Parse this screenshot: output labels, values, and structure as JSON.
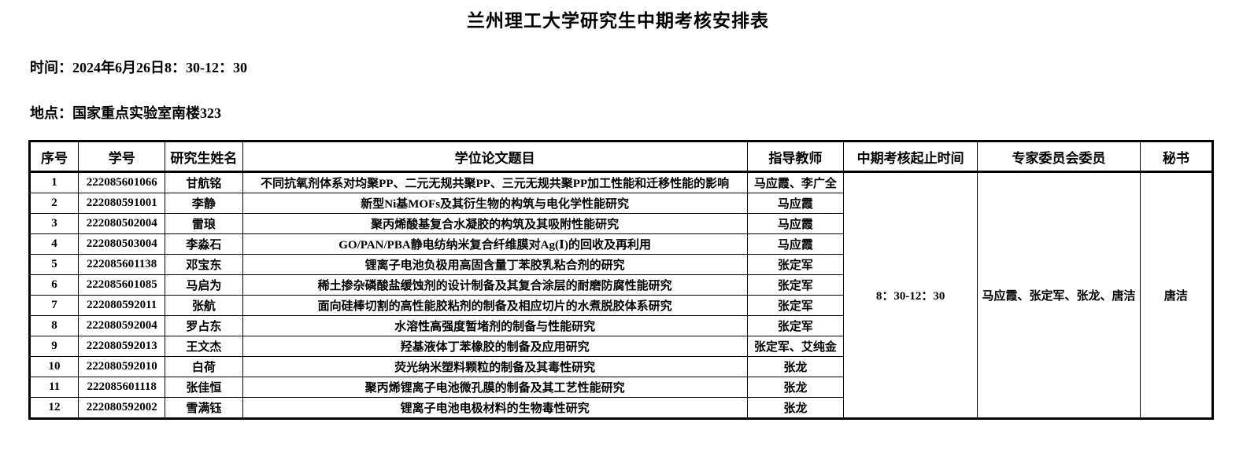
{
  "page": {
    "title": "兰州理工大学研究生中期考核安排表",
    "time_label": "时间：2024年6月26日8：30-12：30",
    "location_label": "地点：国家重点实验室南楼323"
  },
  "table": {
    "headers": [
      "序号",
      "学号",
      "研究生姓名",
      "学位论文题目",
      "指导教师",
      "中期考核起止时间",
      "专家委员会委员",
      "秘书"
    ],
    "rows": [
      {
        "no": "1",
        "student_id": "222085601066",
        "name": "甘航铭",
        "thesis": "不同抗氧剂体系对均聚PP、二元无规共聚PP、三元无规共聚PP加工性能和迁移性能的影响",
        "advisor": "马应霞、李广全"
      },
      {
        "no": "2",
        "student_id": "222080591001",
        "name": "李静",
        "thesis": "新型Ni基MOFs及其衍生物的构筑与电化学性能研究",
        "advisor": "马应霞"
      },
      {
        "no": "3",
        "student_id": "222080502004",
        "name": "雷琅",
        "thesis": "聚丙烯酸基复合水凝胶的构筑及其吸附性能研究",
        "advisor": "马应霞"
      },
      {
        "no": "4",
        "student_id": "222080503004",
        "name": "李淼石",
        "thesis": "GO/PAN/PBA静电纺纳米复合纤维膜对Ag(Ⅰ)的回收及再利用",
        "advisor": "马应霞"
      },
      {
        "no": "5",
        "student_id": "222085601138",
        "name": "邓宝东",
        "thesis": "锂离子电池负极用高固含量丁苯胶乳粘合剂的研究",
        "advisor": "张定军"
      },
      {
        "no": "6",
        "student_id": "222085601085",
        "name": "马启为",
        "thesis": "稀土掺杂磷酸盐缓蚀剂的设计制备及其复合涂层的耐磨防腐性能研究",
        "advisor": "张定军"
      },
      {
        "no": "7",
        "student_id": "222080592011",
        "name": "张航",
        "thesis": "面向硅棒切割的高性能胶粘剂的制备及相应切片的水煮脱胶体系研究",
        "advisor": "张定军"
      },
      {
        "no": "8",
        "student_id": "222080592004",
        "name": "罗占东",
        "thesis": "水溶性高强度暂堵剂的制备与性能研究",
        "advisor": "张定军"
      },
      {
        "no": "9",
        "student_id": "222080592013",
        "name": "王文杰",
        "thesis": "羟基液体丁苯橡胶的制备及应用研究",
        "advisor": "张定军、艾纯金"
      },
      {
        "no": "10",
        "student_id": "222080592010",
        "name": "白荷",
        "thesis": "荧光纳米塑料颗粒的制备及其毒性研究",
        "advisor": "张龙"
      },
      {
        "no": "11",
        "student_id": "222085601118",
        "name": "张佳恒",
        "thesis": "聚丙烯锂离子电池微孔膜的制备及其工艺性能研究",
        "advisor": "张龙"
      },
      {
        "no": "12",
        "student_id": "222080592002",
        "name": "雪满钰",
        "thesis": "锂离子电池电极材料的生物毒性研究",
        "advisor": "张龙"
      }
    ],
    "merged": {
      "exam_time": "8：30-12：30",
      "committee": "马应霞、张定军、张龙、唐洁",
      "secretary": "唐洁"
    }
  }
}
